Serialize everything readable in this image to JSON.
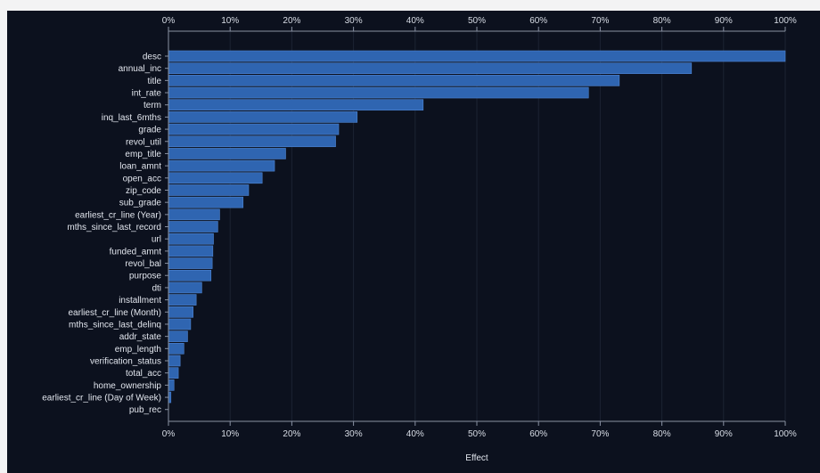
{
  "chart_data": {
    "type": "bar",
    "orientation": "horizontal",
    "title": "",
    "xlabel": "Effect",
    "ylabel": "",
    "xlim": [
      0,
      1
    ],
    "x_ticks": [
      "0%",
      "10%",
      "20%",
      "30%",
      "40%",
      "50%",
      "60%",
      "70%",
      "80%",
      "90%",
      "100%"
    ],
    "grid": true,
    "legend": "none",
    "bar_color": "#2f65b1",
    "background": "#0c111e",
    "categories": [
      "desc",
      "annual_inc",
      "title",
      "int_rate",
      "term",
      "inq_last_6mths",
      "grade",
      "revol_util",
      "emp_title",
      "loan_amnt",
      "open_acc",
      "zip_code",
      "sub_grade",
      "earliest_cr_line (Year)",
      "mths_since_last_record",
      "url",
      "funded_amnt",
      "revol_bal",
      "purpose",
      "dti",
      "installment",
      "earliest_cr_line (Month)",
      "mths_since_last_delinq",
      "addr_state",
      "emp_length",
      "verification_status",
      "total_acc",
      "home_ownership",
      "earliest_cr_line (Day of Week)",
      "pub_rec"
    ],
    "values": [
      1.0,
      0.848,
      0.731,
      0.681,
      0.413,
      0.306,
      0.276,
      0.271,
      0.19,
      0.172,
      0.152,
      0.13,
      0.121,
      0.083,
      0.08,
      0.073,
      0.072,
      0.071,
      0.069,
      0.054,
      0.045,
      0.04,
      0.036,
      0.031,
      0.025,
      0.019,
      0.016,
      0.009,
      0.004,
      0.0
    ]
  }
}
